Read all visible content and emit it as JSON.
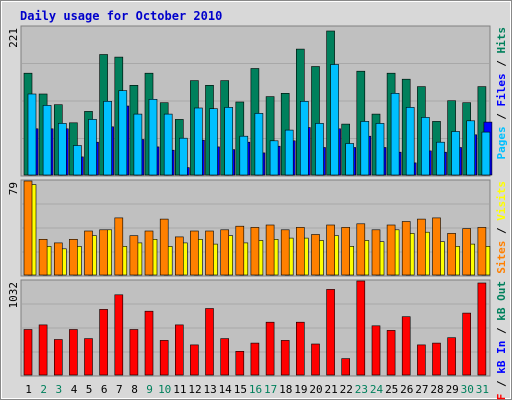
{
  "title": "Daily usage for October 2010",
  "colors": {
    "background": "#ffffff",
    "frame": "#d8d8d8",
    "plot_bg": "#c0c0c0",
    "title": "#0000cc",
    "hits": "#00805c",
    "files": "#0000ff",
    "pages": "#00c0ff",
    "visits": "#ffff00",
    "sites": "#ff8000",
    "kbin": "#0000ff",
    "kbout": "#00805c",
    "kbf": "#ff0000",
    "weekday_label": "#000000",
    "weekend_label": "#00805c"
  },
  "days": [
    "1",
    "2",
    "3",
    "4",
    "5",
    "6",
    "7",
    "8",
    "9",
    "10",
    "11",
    "12",
    "13",
    "14",
    "15",
    "16",
    "17",
    "18",
    "19",
    "20",
    "21",
    "22",
    "23",
    "24",
    "25",
    "26",
    "27",
    "28",
    "29",
    "30",
    "31"
  ],
  "weekend_days": [
    "2",
    "3",
    "9",
    "10",
    "16",
    "17",
    "23",
    "24",
    "30",
    "31"
  ],
  "chart_data": [
    {
      "type": "bar",
      "panel": "top",
      "ymax_label": "221",
      "ylim": [
        0,
        221
      ],
      "right_label": [
        "Pages",
        " / ",
        "Files",
        " / ",
        "Hits"
      ],
      "series": [
        {
          "name": "Hits",
          "values": [
            152,
            121,
            105,
            78,
            95,
            180,
            176,
            134,
            152,
            108,
            83,
            141,
            134,
            141,
            109,
            159,
            117,
            122,
            188,
            162,
            215,
            76,
            155,
            91,
            152,
            143,
            132,
            80,
            111,
            108,
            132
          ]
        },
        {
          "name": "Files",
          "values": [
            69,
            69,
            69,
            27,
            49,
            72,
            103,
            53,
            42,
            37,
            11,
            52,
            42,
            38,
            49,
            33,
            43,
            51,
            71,
            41,
            69,
            41,
            58,
            41,
            34,
            18,
            36,
            34,
            41,
            60,
            79
          ]
        },
        {
          "name": "Pages",
          "values": [
            121,
            104,
            77,
            44,
            83,
            110,
            126,
            91,
            113,
            91,
            55,
            100,
            99,
            101,
            58,
            92,
            51,
            67,
            110,
            77,
            165,
            47,
            80,
            77,
            122,
            101,
            86,
            49,
            65,
            81,
            64
          ]
        }
      ]
    },
    {
      "type": "bar",
      "panel": "middle",
      "ymax_label": "79",
      "ylim": [
        0,
        79
      ],
      "right_label": [
        "Sites",
        " / ",
        "Visits"
      ],
      "series": [
        {
          "name": "Visits",
          "values": [
            76,
            24,
            22,
            24,
            33,
            38,
            24,
            27,
            30,
            24,
            27,
            30,
            26,
            33,
            27,
            29,
            30,
            31,
            31,
            29,
            33,
            24,
            29,
            28,
            38,
            35,
            36,
            28,
            24,
            26,
            24
          ]
        },
        {
          "name": "Sites",
          "values": [
            79,
            30,
            27,
            30,
            37,
            38,
            48,
            33,
            37,
            47,
            32,
            37,
            37,
            38,
            41,
            40,
            42,
            38,
            40,
            34,
            42,
            40,
            43,
            38,
            42,
            45,
            47,
            48,
            35,
            39,
            40
          ]
        }
      ]
    },
    {
      "type": "bar",
      "panel": "bottom",
      "ymax_label": "1032",
      "ylim": [
        0,
        1032
      ],
      "right_label": [
        "kB F",
        " / ",
        "kB In",
        " / ",
        "kB Out"
      ],
      "series": [
        {
          "name": "kB F",
          "values": [
            500,
            550,
            390,
            500,
            400,
            720,
            880,
            500,
            700,
            380,
            550,
            330,
            730,
            400,
            260,
            350,
            580,
            380,
            580,
            340,
            940,
            180,
            1032,
            540,
            490,
            640,
            330,
            350,
            410,
            680,
            1010
          ]
        },
        {
          "name": "kB In",
          "values": [
            0,
            0,
            0,
            0,
            0,
            0,
            0,
            0,
            0,
            0,
            0,
            0,
            0,
            0,
            0,
            0,
            0,
            0,
            0,
            0,
            0,
            0,
            0,
            0,
            0,
            0,
            0,
            0,
            0,
            0,
            0
          ]
        },
        {
          "name": "kB Out",
          "values": [
            0,
            0,
            0,
            0,
            0,
            0,
            0,
            0,
            0,
            0,
            0,
            0,
            0,
            0,
            0,
            0,
            0,
            0,
            0,
            0,
            0,
            0,
            0,
            0,
            0,
            0,
            0,
            0,
            0,
            0,
            0
          ]
        }
      ]
    }
  ]
}
